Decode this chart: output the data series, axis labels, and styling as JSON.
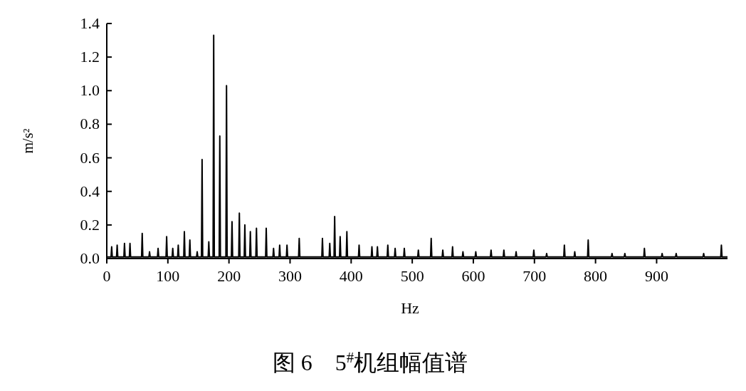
{
  "chart_data": {
    "type": "line",
    "title": "图 6　5$^{#}$机组幅值谱",
    "xlabel": "Hz",
    "ylabel": "m/s²",
    "xlim": [
      0,
      1016
    ],
    "ylim": [
      0,
      1.4
    ],
    "xticks": [
      {
        "value": 0,
        "label": "0"
      },
      100,
      200,
      300,
      400,
      500,
      600,
      700,
      800,
      900
    ],
    "yticks": [
      {
        "value": 0,
        "label": "0.0"
      },
      0.2,
      0.4,
      0.6,
      0.8,
      {
        "value": 1,
        "label": "1.0"
      },
      1.2,
      1.4
    ],
    "grid": false,
    "marker": "none",
    "line_style": "solid",
    "series": [
      {
        "color": "#000000",
        "x": [
          0,
          7,
          8,
          9,
          16,
          17,
          18,
          28,
          29,
          30,
          37,
          38,
          39,
          57,
          58,
          59,
          69,
          70,
          71,
          83,
          84,
          85,
          97,
          98,
          99,
          107,
          108,
          109,
          116,
          117,
          118,
          126,
          127,
          128,
          135,
          136,
          137,
          147,
          148,
          149,
          155,
          156,
          157,
          166,
          167,
          168,
          174,
          175,
          176,
          184,
          185,
          186,
          195,
          196,
          197,
          204,
          205,
          206,
          216,
          217,
          218,
          225,
          226,
          227,
          234,
          235,
          236,
          244,
          245,
          246,
          260,
          261,
          262,
          272,
          273,
          274,
          282,
          283,
          284,
          294,
          295,
          296,
          314,
          315,
          316,
          352,
          353,
          354,
          364,
          365,
          366,
          372,
          373,
          374,
          381,
          382,
          383,
          392,
          393,
          394,
          412,
          413,
          414,
          433,
          434,
          435,
          442,
          443,
          444,
          459,
          460,
          461,
          471,
          472,
          473,
          486,
          487,
          488,
          509,
          510,
          511,
          530,
          531,
          532,
          549,
          550,
          551,
          565,
          566,
          567,
          582,
          583,
          584,
          603,
          604,
          605,
          628,
          629,
          630,
          649,
          650,
          651,
          669,
          670,
          671,
          698,
          699,
          700,
          719,
          720,
          721,
          748,
          749,
          750,
          765,
          766,
          767,
          787,
          788,
          789,
          826,
          827,
          828,
          847,
          848,
          849,
          879,
          880,
          881,
          908,
          909,
          910,
          931,
          932,
          933,
          976,
          977,
          978,
          1005,
          1006,
          1007,
          1016
        ],
        "values": [
          0.01,
          0.01,
          0.07,
          0.01,
          0.01,
          0.08,
          0.01,
          0.01,
          0.09,
          0.01,
          0.01,
          0.09,
          0.01,
          0.01,
          0.15,
          0.01,
          0.01,
          0.04,
          0.01,
          0.01,
          0.06,
          0.01,
          0.01,
          0.13,
          0.01,
          0.01,
          0.06,
          0.01,
          0.01,
          0.08,
          0.01,
          0.01,
          0.16,
          0.01,
          0.01,
          0.11,
          0.01,
          0.01,
          0.04,
          0.01,
          0.01,
          0.59,
          0.01,
          0.01,
          0.1,
          0.01,
          0.01,
          1.33,
          0.01,
          0.01,
          0.73,
          0.01,
          0.01,
          1.03,
          0.01,
          0.01,
          0.22,
          0.01,
          0.01,
          0.27,
          0.01,
          0.01,
          0.2,
          0.01,
          0.01,
          0.16,
          0.01,
          0.01,
          0.18,
          0.01,
          0.01,
          0.18,
          0.01,
          0.01,
          0.06,
          0.01,
          0.01,
          0.08,
          0.01,
          0.01,
          0.08,
          0.01,
          0.01,
          0.12,
          0.01,
          0.01,
          0.12,
          0.01,
          0.01,
          0.09,
          0.01,
          0.01,
          0.25,
          0.01,
          0.01,
          0.13,
          0.01,
          0.01,
          0.16,
          0.01,
          0.01,
          0.08,
          0.01,
          0.01,
          0.07,
          0.01,
          0.01,
          0.07,
          0.01,
          0.01,
          0.08,
          0.01,
          0.01,
          0.06,
          0.01,
          0.01,
          0.06,
          0.01,
          0.01,
          0.05,
          0.01,
          0.01,
          0.12,
          0.01,
          0.01,
          0.05,
          0.01,
          0.01,
          0.07,
          0.01,
          0.01,
          0.04,
          0.01,
          0.01,
          0.04,
          0.01,
          0.01,
          0.05,
          0.01,
          0.01,
          0.05,
          0.01,
          0.01,
          0.04,
          0.01,
          0.01,
          0.05,
          0.01,
          0.01,
          0.03,
          0.01,
          0.01,
          0.08,
          0.01,
          0.01,
          0.04,
          0.01,
          0.01,
          0.11,
          0.01,
          0.01,
          0.03,
          0.01,
          0.01,
          0.03,
          0.01,
          0.01,
          0.06,
          0.01,
          0.01,
          0.03,
          0.01,
          0.01,
          0.03,
          0.01,
          0.01,
          0.03,
          0.01,
          0.01,
          0.08,
          0.01,
          0.01
        ]
      }
    ]
  }
}
